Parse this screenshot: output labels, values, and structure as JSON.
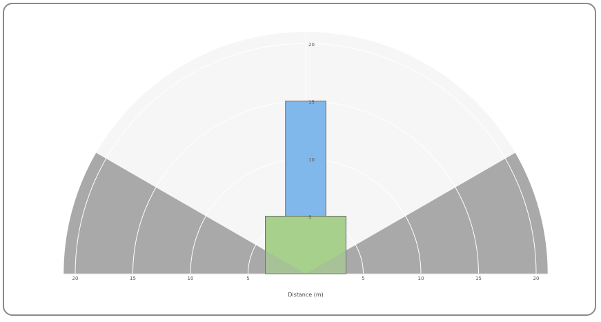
{
  "chart_data": {
    "type": "polar-half-area",
    "xlabel": "Distance (m)",
    "x_ticks": [
      "20",
      "15",
      "10",
      "5",
      "",
      "5",
      "10",
      "15",
      "20"
    ],
    "radial_ticks": [
      "20",
      "15",
      "10",
      "5"
    ],
    "max_range": 21,
    "field_of_view_deg": 120,
    "blocked_regions_deg": [
      [
        0,
        30
      ],
      [
        150,
        180
      ]
    ],
    "rectangles": [
      {
        "name": "",
        "x_range": [
          -1.75,
          1.75
        ],
        "y_range": [
          5,
          15
        ],
        "color": "#80b8ec"
      },
      {
        "name": "",
        "x_range": [
          -3.5,
          3.5
        ],
        "y_range": [
          0,
          5
        ],
        "color": "#a6d08c"
      }
    ],
    "colors": {
      "blocked": "#a9a9a9",
      "ring_fill": "#f6f6f6",
      "grid": "#ffffff",
      "outline": "#666666"
    }
  }
}
